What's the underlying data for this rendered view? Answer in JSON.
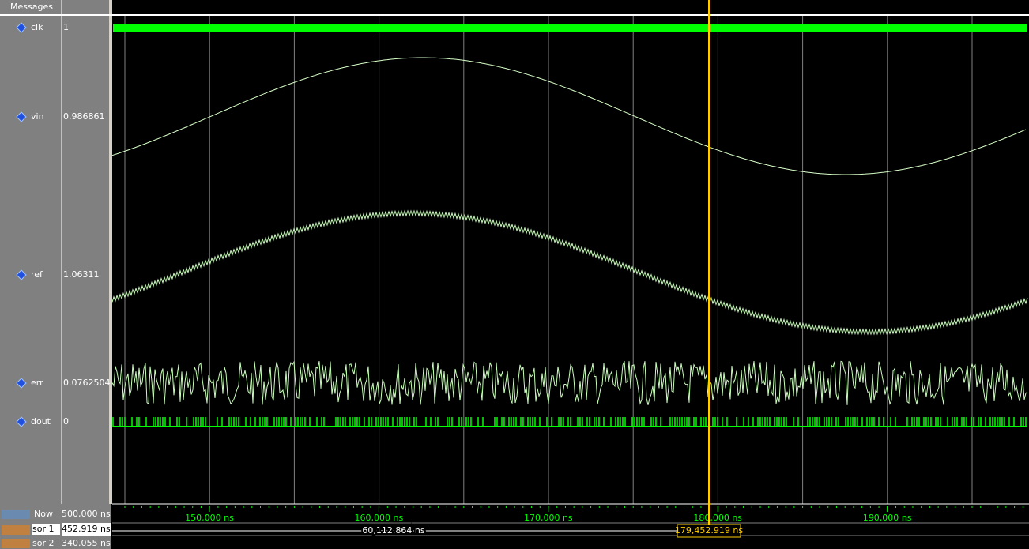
{
  "header": {
    "title": "Messages"
  },
  "signals": [
    {
      "name": "clk",
      "value": "1"
    },
    {
      "name": "vin",
      "value": "0.986861"
    },
    {
      "name": "ref",
      "value": "1.06311"
    },
    {
      "name": "err",
      "value": "0.0762504"
    },
    {
      "name": "dout",
      "value": "0"
    }
  ],
  "status": {
    "now": {
      "label": "Now",
      "value": "500,000 ns"
    },
    "cursors": [
      {
        "label": "sor 1",
        "value": "452.919 ns"
      },
      {
        "label": "sor 2",
        "value": "340.055 ns"
      }
    ]
  },
  "ruler": {
    "labels": [
      "150,000 ns",
      "160,000 ns",
      "170,000 ns",
      "180,000 ns",
      "190,000 ns"
    ]
  },
  "cursor_bar": {
    "delta": "60,112.864 ns",
    "cursor": "179,452.919 ns"
  }
}
